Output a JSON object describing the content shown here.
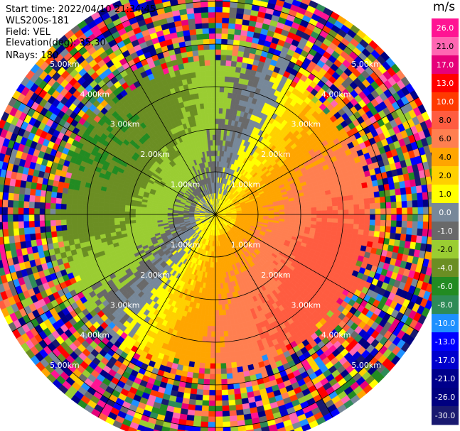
{
  "header": {
    "start_time": "Start time: 2022/04/10 21:34:45",
    "instrument": "WLS200s-181",
    "field": "Field: VEL",
    "elevation": "Elevation(deg): 35.30",
    "nrays": "NRays: 180"
  },
  "chart_data": {
    "type": "heatmap",
    "projection": "polar PPI (radar scan)",
    "field": "VEL",
    "units": "m/s",
    "range_rings_km": [
      1,
      2,
      3,
      4,
      5
    ],
    "ring_labels": [
      "1.00km",
      "2.00km",
      "3.00km",
      "4.00km",
      "5.00km"
    ],
    "azimuth_spokes_deg": [
      0,
      30,
      60,
      90,
      120,
      150,
      180,
      210,
      240,
      270,
      300,
      330
    ],
    "colorbar": {
      "label": "m/s",
      "ticks": [
        "26.0",
        "21.0",
        "17.0",
        "13.0",
        "10.0",
        "8.0",
        "6.0",
        "4.0",
        "2.0",
        "1.0",
        "0.0",
        "-1.0",
        "-2.0",
        "-4.0",
        "-6.0",
        "-8.0",
        "-10.0",
        "-13.0",
        "-17.0",
        "-21.0",
        "-26.0",
        "-30.0"
      ],
      "colors": [
        "#ff1493",
        "#ff66b2",
        "#e6007a",
        "#ff0000",
        "#ff3a00",
        "#ff5c40",
        "#ff7f50",
        "#ffa500",
        "#ffd000",
        "#ffff00",
        "#778899",
        "#696969",
        "#9acd32",
        "#6b8e23",
        "#228b22",
        "#2e8b57",
        "#1e90ff",
        "#0000ff",
        "#0000cd",
        "#00008b",
        "#000080",
        "#191970"
      ]
    },
    "velocity_pattern": {
      "description": "Dipole-like radial velocity field: receding (yellow/orange, positive) toward the south-east, approaching (green, negative) toward the north-west, noisy beyond ~3.5 km",
      "valid_range_km": 3.5,
      "max_range_km": 5.5
    }
  }
}
